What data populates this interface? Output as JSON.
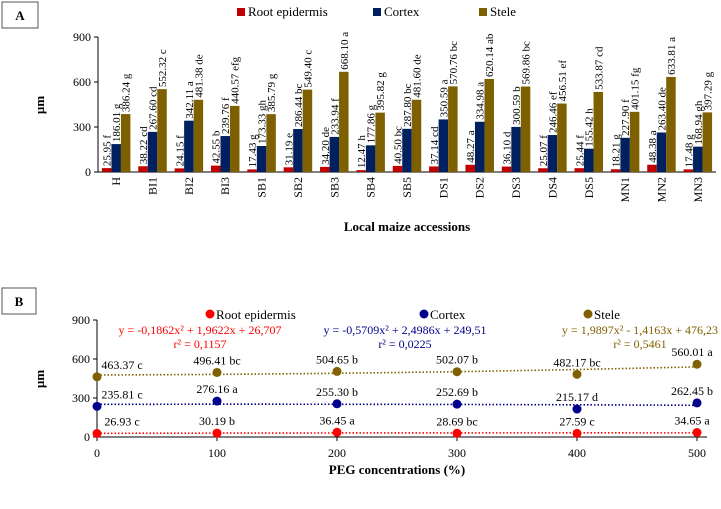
{
  "chart_data": [
    {
      "panel": "A",
      "type": "bar",
      "xlabel": "Local maize accessions",
      "ylabel": "µm",
      "ylim": [
        0,
        900
      ],
      "yticks": [
        0,
        300,
        600,
        900
      ],
      "legend_placement": "top",
      "categories": [
        "H",
        "BI1",
        "BI2",
        "BI3",
        "SB1",
        "SB2",
        "SB3",
        "SB4",
        "SB5",
        "DS1",
        "DS2",
        "DS3",
        "DS4",
        "DS5",
        "MN1",
        "MN2",
        "MN3"
      ],
      "series": [
        {
          "name": "Root epidermis",
          "color": "#c00000",
          "values": [
            25.95,
            38.22,
            24.15,
            42.55,
            17.43,
            31.19,
            34.2,
            12.47,
            40.5,
            37.14,
            48.27,
            36.1,
            25.07,
            25.44,
            18.21,
            48.38,
            17.48
          ],
          "labels": [
            "25.95 f",
            "38.22 cd",
            "24.15 f",
            "42.55 b",
            "17.43 g",
            "31.19 e",
            "34.20 de",
            "12.47 h",
            "40.50 bc",
            "37.14 cd",
            "48.27 a",
            "36.10 d",
            "25.07 f",
            "25.44 f",
            "18.21 g",
            "48.38 a",
            "17.48 g"
          ]
        },
        {
          "name": "Cortex",
          "color": "#002060",
          "values": [
            186.01,
            267.6,
            342.11,
            239.76,
            173.33,
            286.44,
            233.94,
            177.86,
            287.8,
            350.59,
            334.98,
            300.59,
            246.46,
            155.42,
            227.9,
            263.4,
            168.94
          ],
          "labels": [
            "186.01 g",
            "267.60 cd",
            "342.11 a",
            "239.76 f",
            "173.33 gh",
            "286.44 bc",
            "233.94 f",
            "177.86 g",
            "287.80 bc",
            "350.59 a",
            "334.98 a",
            "300.59 b",
            "246.46 ef",
            "155.42 h",
            "227.90 f",
            "263.40 de",
            "168.94 gh"
          ]
        },
        {
          "name": "Stele",
          "color": "#7f6000",
          "values": [
            386.24,
            552.32,
            481.38,
            440.57,
            385.79,
            549.4,
            668.1,
            395.82,
            481.6,
            570.76,
            620.14,
            569.86,
            456.51,
            533.87,
            401.15,
            633.81,
            397.29
          ],
          "labels": [
            "386.24 g",
            "552.32 c",
            "481.38 de",
            "440.57 efg",
            "385.79 g",
            "549.40 c",
            "668.10 a",
            "395.82 g",
            "481.60 de",
            "570.76 bc",
            "620.14 ab",
            "569.86 bc",
            "456.51 ef",
            "533.87 cd",
            "401.15 fg",
            "633.81 a",
            "397.29 g"
          ]
        }
      ]
    },
    {
      "panel": "B",
      "type": "scatter",
      "xlabel": "PEG concentrations (%)",
      "ylabel": "µm",
      "ylim": [
        0,
        900
      ],
      "xlim": [
        0,
        500
      ],
      "yticks": [
        0,
        300,
        600,
        900
      ],
      "xticks": [
        0,
        100,
        200,
        300,
        400,
        500
      ],
      "legend_placement": "top",
      "x": [
        0,
        100,
        200,
        300,
        400,
        500
      ],
      "series": [
        {
          "name": "Root epidermis",
          "color": "#ff0000",
          "values": [
            26.93,
            30.19,
            36.45,
            28.69,
            27.59,
            34.65
          ],
          "labels": [
            "26.93 c",
            "30.19 b",
            "36.45 a",
            "28.69 bc",
            "27.59 c",
            "34.65 a"
          ],
          "trend": {
            "type": "polynomial",
            "coeffs": [
              -0.1862,
              1.9622,
              26.707
            ]
          },
          "equation": "y = -0,1862x² + 1,9622x + 26,707",
          "r2": "r² = 0,1157"
        },
        {
          "name": "Cortex",
          "color": "#00008b",
          "values": [
            235.81,
            276.16,
            255.3,
            252.69,
            215.17,
            262.45
          ],
          "labels": [
            "235.81 c",
            "276.16 a",
            "255.30 b",
            "252.69 b",
            "215.17 d",
            "262.45 b"
          ],
          "trend": {
            "type": "polynomial",
            "coeffs": [
              -0.5709,
              2.4986,
              249.51
            ]
          },
          "equation": "y = -0,5709x² + 2,4986x + 249,51",
          "r2": "r² = 0,0225"
        },
        {
          "name": "Stele",
          "color": "#806000",
          "values": [
            463.37,
            496.41,
            504.65,
            502.07,
            482.17,
            560.01
          ],
          "labels": [
            "463.37 c",
            "496.41 bc",
            "504.65 b",
            "502.07 b",
            "482.17 bc",
            "560.01 a"
          ],
          "trend": {
            "type": "polynomial",
            "coeffs": [
              1.9897,
              -1.4163,
              476.23
            ]
          },
          "equation": "y = 1,9897x² - 1,4163x + 476,23",
          "r2": "r² = 0,5461"
        }
      ]
    }
  ]
}
